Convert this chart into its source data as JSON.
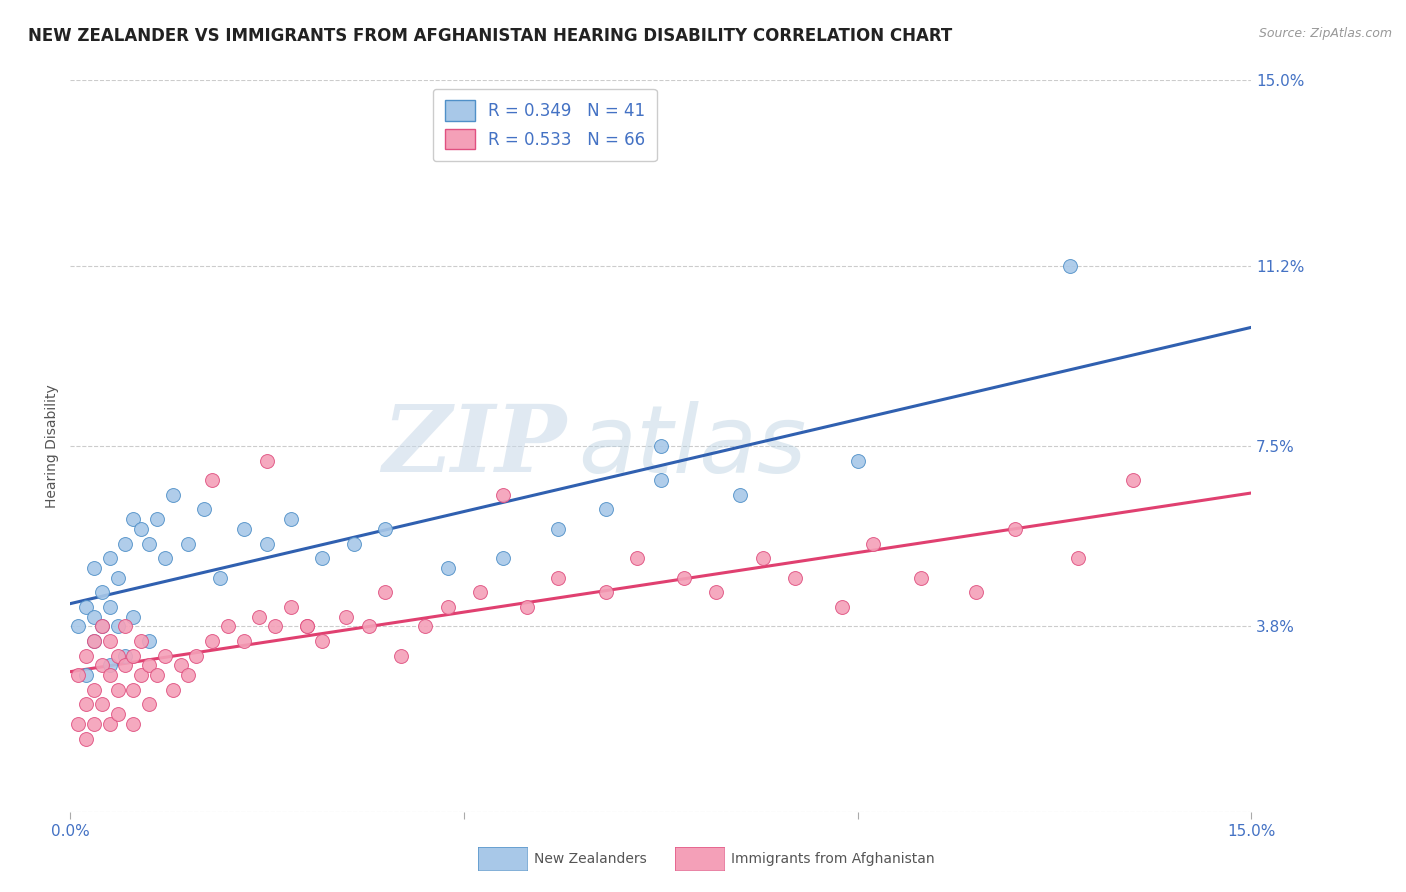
{
  "title": "NEW ZEALANDER VS IMMIGRANTS FROM AFGHANISTAN HEARING DISABILITY CORRELATION CHART",
  "source_text": "Source: ZipAtlas.com",
  "ylabel": "Hearing Disability",
  "legend_label_1": "New Zealanders",
  "legend_label_2": "Immigrants from Afghanistan",
  "R1": 0.349,
  "N1": 41,
  "R2": 0.533,
  "N2": 66,
  "color1": "#a8c8e8",
  "color2": "#f4a0b8",
  "edge_color1": "#5090c8",
  "edge_color2": "#e05080",
  "line_color1": "#3060b0",
  "line_color2": "#e04070",
  "xlim": [
    0.0,
    0.15
  ],
  "ylim": [
    0.0,
    0.15
  ],
  "ytick_vals": [
    0.038,
    0.075,
    0.112,
    0.15
  ],
  "ytick_labels": [
    "3.8%",
    "7.5%",
    "11.2%",
    "15.0%"
  ],
  "watermark_zip": "ZIP",
  "watermark_atlas": "atlas",
  "background_color": "#ffffff",
  "title_fontsize": 12,
  "axis_label_fontsize": 10,
  "tick_fontsize": 11,
  "legend_fontsize": 12,
  "scatter1_x": [
    0.001,
    0.002,
    0.002,
    0.003,
    0.003,
    0.003,
    0.004,
    0.004,
    0.005,
    0.005,
    0.005,
    0.006,
    0.006,
    0.007,
    0.007,
    0.008,
    0.008,
    0.009,
    0.01,
    0.01,
    0.011,
    0.012,
    0.013,
    0.015,
    0.017,
    0.019,
    0.022,
    0.025,
    0.028,
    0.032,
    0.036,
    0.04,
    0.048,
    0.055,
    0.062,
    0.068,
    0.075,
    0.085,
    0.1,
    0.127,
    0.075
  ],
  "scatter1_y": [
    0.038,
    0.042,
    0.028,
    0.04,
    0.035,
    0.05,
    0.038,
    0.045,
    0.03,
    0.042,
    0.052,
    0.038,
    0.048,
    0.055,
    0.032,
    0.06,
    0.04,
    0.058,
    0.035,
    0.055,
    0.06,
    0.052,
    0.065,
    0.055,
    0.062,
    0.048,
    0.058,
    0.055,
    0.06,
    0.052,
    0.055,
    0.058,
    0.05,
    0.052,
    0.058,
    0.062,
    0.068,
    0.065,
    0.072,
    0.112,
    0.075
  ],
  "scatter2_x": [
    0.001,
    0.001,
    0.002,
    0.002,
    0.002,
    0.003,
    0.003,
    0.003,
    0.004,
    0.004,
    0.004,
    0.005,
    0.005,
    0.005,
    0.006,
    0.006,
    0.006,
    0.007,
    0.007,
    0.008,
    0.008,
    0.008,
    0.009,
    0.009,
    0.01,
    0.01,
    0.011,
    0.012,
    0.013,
    0.014,
    0.015,
    0.016,
    0.018,
    0.02,
    0.022,
    0.024,
    0.026,
    0.028,
    0.03,
    0.032,
    0.035,
    0.038,
    0.04,
    0.045,
    0.048,
    0.052,
    0.058,
    0.062,
    0.068,
    0.072,
    0.078,
    0.082,
    0.088,
    0.092,
    0.098,
    0.102,
    0.108,
    0.115,
    0.12,
    0.128,
    0.018,
    0.025,
    0.03,
    0.042,
    0.055,
    0.135
  ],
  "scatter2_y": [
    0.028,
    0.018,
    0.022,
    0.032,
    0.015,
    0.025,
    0.035,
    0.018,
    0.03,
    0.022,
    0.038,
    0.028,
    0.018,
    0.035,
    0.025,
    0.032,
    0.02,
    0.03,
    0.038,
    0.025,
    0.032,
    0.018,
    0.028,
    0.035,
    0.022,
    0.03,
    0.028,
    0.032,
    0.025,
    0.03,
    0.028,
    0.032,
    0.035,
    0.038,
    0.035,
    0.04,
    0.038,
    0.042,
    0.038,
    0.035,
    0.04,
    0.038,
    0.045,
    0.038,
    0.042,
    0.045,
    0.042,
    0.048,
    0.045,
    0.052,
    0.048,
    0.045,
    0.052,
    0.048,
    0.042,
    0.055,
    0.048,
    0.045,
    0.058,
    0.052,
    0.068,
    0.072,
    0.038,
    0.032,
    0.065,
    0.068
  ]
}
